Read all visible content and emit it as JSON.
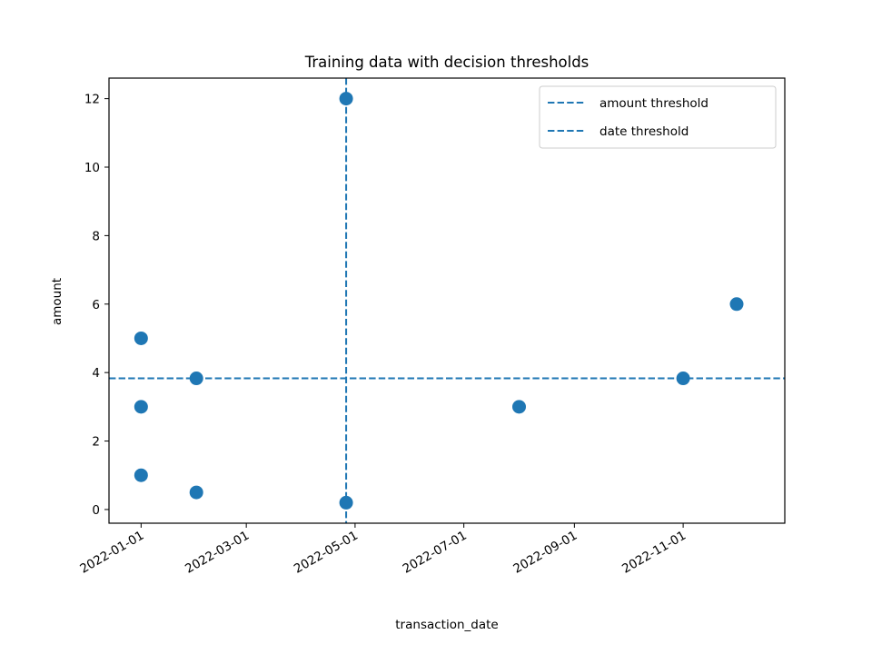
{
  "chart_data": {
    "type": "scatter",
    "title": "Training data with decision thresholds",
    "xlabel": "transaction_date",
    "ylabel": "amount",
    "x_type": "date",
    "xlim": [
      "2021-12-14",
      "2022-12-28"
    ],
    "ylim": [
      -0.4,
      12.6
    ],
    "xticks": [
      "2022-01-01",
      "2022-03-01",
      "2022-05-01",
      "2022-07-01",
      "2022-09-01",
      "2022-11-01"
    ],
    "yticks": [
      0,
      2,
      4,
      6,
      8,
      10,
      12
    ],
    "grid": false,
    "legend_position": "top-right",
    "series": [
      {
        "color": "#1f77b4",
        "points": [
          {
            "x": "2022-01-01",
            "y": 5
          },
          {
            "x": "2022-01-01",
            "y": 3
          },
          {
            "x": "2022-01-01",
            "y": 1
          },
          {
            "x": "2022-02-01",
            "y": 3.83
          },
          {
            "x": "2022-02-01",
            "y": 0.5
          },
          {
            "x": "2022-04-26",
            "y": 12
          },
          {
            "x": "2022-04-26",
            "y": 0.2
          },
          {
            "x": "2022-08-01",
            "y": 3
          },
          {
            "x": "2022-11-01",
            "y": 3.83
          },
          {
            "x": "2022-12-01",
            "y": 6
          }
        ]
      }
    ],
    "thresholds": [
      {
        "name": "amount threshold",
        "orientation": "horizontal",
        "value": 3.83,
        "color": "#1f77b4",
        "style": "dashed"
      },
      {
        "name": "date threshold",
        "orientation": "vertical",
        "value": "2022-04-26",
        "color": "#1f77b4",
        "style": "dashed"
      }
    ]
  }
}
